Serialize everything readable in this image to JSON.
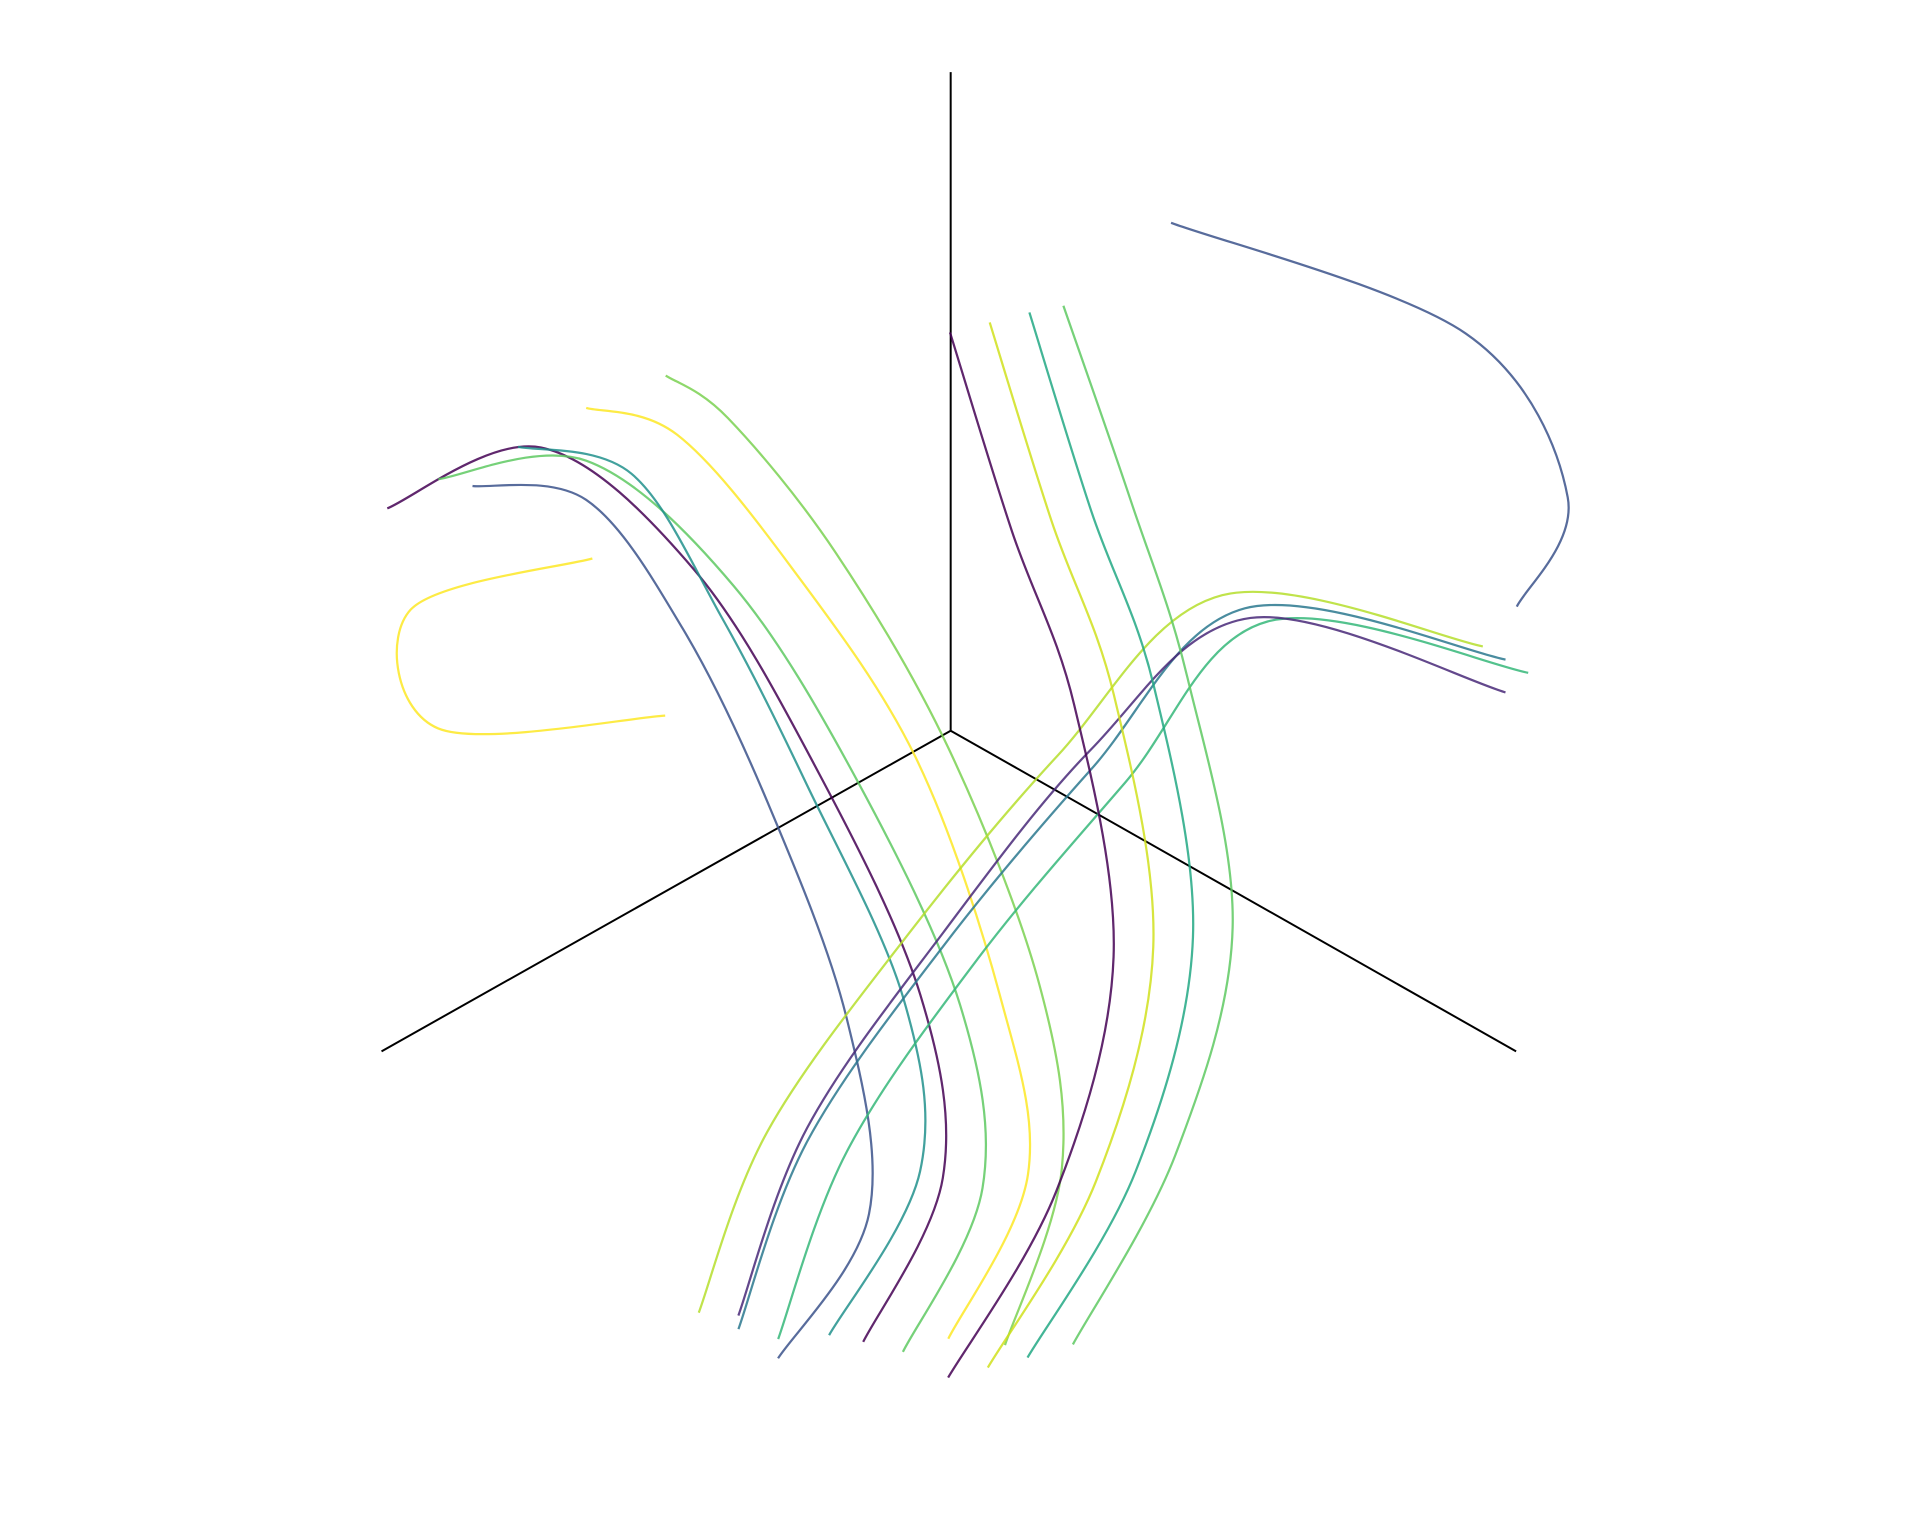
{
  "chart_data": {
    "type": "line3d",
    "series": [
      {
        "color": "#440154",
        "x": [
          0.97,
          0.74,
          0.59,
          0.54,
          0.54,
          0.6,
          0.72
        ],
        "y": [
          -0.02,
          0.02,
          0.14,
          0.31,
          0.49,
          0.59,
          0.57
        ],
        "z": [
          0.8,
          0.8,
          0.6,
          0.35,
          0.1,
          -0.1,
          -0.3
        ]
      },
      {
        "color": "#5ec962",
        "x": [
          0.9,
          0.7,
          0.56,
          0.5,
          0.5,
          0.56,
          0.68
        ],
        "y": [
          0.0,
          0.06,
          0.18,
          0.34,
          0.52,
          0.62,
          0.6
        ],
        "z": [
          0.82,
          0.78,
          0.58,
          0.33,
          0.08,
          -0.12,
          -0.32
        ]
      },
      {
        "color": "#21918c",
        "x": [
          0.8,
          0.66,
          0.6,
          0.58,
          0.58,
          0.63,
          0.76
        ],
        "y": [
          0.04,
          0.1,
          0.2,
          0.33,
          0.5,
          0.58,
          0.55
        ],
        "z": [
          0.84,
          0.76,
          0.56,
          0.36,
          0.12,
          -0.08,
          -0.28
        ]
      },
      {
        "color": "#fde725",
        "x": [
          0.7,
          0.6,
          0.52,
          0.46,
          0.47,
          0.52,
          0.64
        ],
        "y": [
          0.06,
          0.12,
          0.24,
          0.4,
          0.56,
          0.66,
          0.64
        ],
        "z": [
          0.86,
          0.8,
          0.62,
          0.38,
          0.1,
          -0.1,
          -0.3
        ]
      },
      {
        "color": "#3b528b",
        "x": [
          0.86,
          0.72,
          0.63,
          0.6,
          0.62,
          0.68,
          0.8
        ],
        "y": [
          0.02,
          0.08,
          0.16,
          0.28,
          0.44,
          0.54,
          0.5
        ],
        "z": [
          0.8,
          0.74,
          0.54,
          0.32,
          0.08,
          -0.14,
          -0.32
        ]
      },
      {
        "color": "#7ad151",
        "x": [
          0.6,
          0.55,
          0.48,
          0.44,
          0.44,
          0.5,
          0.6
        ],
        "y": [
          0.1,
          0.16,
          0.28,
          0.44,
          0.6,
          0.7,
          0.7
        ],
        "z": [
          0.88,
          0.82,
          0.64,
          0.4,
          0.12,
          -0.08,
          -0.3
        ]
      },
      {
        "color": "#2a788e",
        "x": [
          -0.19,
          -0.04,
          0.14,
          0.34,
          0.56,
          0.81
        ],
        "y": [
          0.79,
          0.48,
          0.39,
          0.33,
          0.31,
          0.44
        ],
        "z": [
          0.4,
          0.4,
          0.2,
          0.0,
          -0.2,
          -0.3
        ]
      },
      {
        "color": "#b5de2b",
        "x": [
          -0.17,
          -0.02,
          0.17,
          0.37,
          0.6,
          0.84
        ],
        "y": [
          0.77,
          0.46,
          0.36,
          0.3,
          0.28,
          0.4
        ],
        "z": [
          0.42,
          0.42,
          0.22,
          0.02,
          -0.18,
          -0.28
        ]
      },
      {
        "color": "#35b779",
        "x": [
          -0.21,
          -0.06,
          0.11,
          0.31,
          0.52,
          0.77
        ],
        "y": [
          0.81,
          0.5,
          0.42,
          0.36,
          0.34,
          0.47
        ],
        "z": [
          0.38,
          0.38,
          0.18,
          -0.02,
          -0.22,
          -0.32
        ]
      },
      {
        "color": "#482878",
        "x": [
          -0.18,
          -0.03,
          0.15,
          0.36,
          0.58,
          0.83
        ],
        "y": [
          0.8,
          0.5,
          0.4,
          0.35,
          0.33,
          0.46
        ],
        "z": [
          0.36,
          0.4,
          0.24,
          0.04,
          -0.16,
          -0.26
        ]
      },
      {
        "color": "#d0e11c",
        "x": [
          0.15,
          0.2,
          0.21,
          0.26,
          0.47,
          0.65
        ],
        "y": [
          0.22,
          0.38,
          0.5,
          0.62,
          0.73,
          0.72
        ],
        "z": [
          0.8,
          0.6,
          0.4,
          0.1,
          -0.1,
          -0.3
        ]
      },
      {
        "color": "#22a884",
        "x": [
          0.12,
          0.17,
          0.18,
          0.23,
          0.44,
          0.62
        ],
        "y": [
          0.26,
          0.42,
          0.54,
          0.66,
          0.77,
          0.76
        ],
        "z": [
          0.82,
          0.62,
          0.42,
          0.12,
          -0.08,
          -0.28
        ]
      },
      {
        "color": "#440154",
        "x": [
          0.18,
          0.23,
          0.24,
          0.29,
          0.5,
          0.68
        ],
        "y": [
          0.18,
          0.34,
          0.46,
          0.58,
          0.69,
          0.68
        ],
        "z": [
          0.78,
          0.58,
          0.38,
          0.08,
          -0.12,
          -0.32
        ]
      },
      {
        "color": "#5ec962",
        "x": [
          0.1,
          0.14,
          0.16,
          0.2,
          0.4,
          0.58
        ],
        "y": [
          0.3,
          0.46,
          0.58,
          0.7,
          0.8,
          0.8
        ],
        "z": [
          0.84,
          0.64,
          0.44,
          0.14,
          -0.06,
          -0.26
        ]
      },
      {
        "color": "#3b528b",
        "x": [
          0.04,
          -0.15,
          -0.19,
          -0.18
        ],
        "y": [
          0.43,
          0.76,
          0.9,
          0.82
        ],
        "z": [
          1.0,
          0.9,
          0.7,
          0.5
        ]
      },
      {
        "color": "#fde725",
        "x": [
          0.56,
          0.8,
          0.96,
          0.74
        ],
        "y": [
          -0.07,
          -0.15,
          0.06,
          0.24
        ],
        "z": [
          0.5,
          0.5,
          0.5,
          0.5
        ]
      }
    ]
  }
}
